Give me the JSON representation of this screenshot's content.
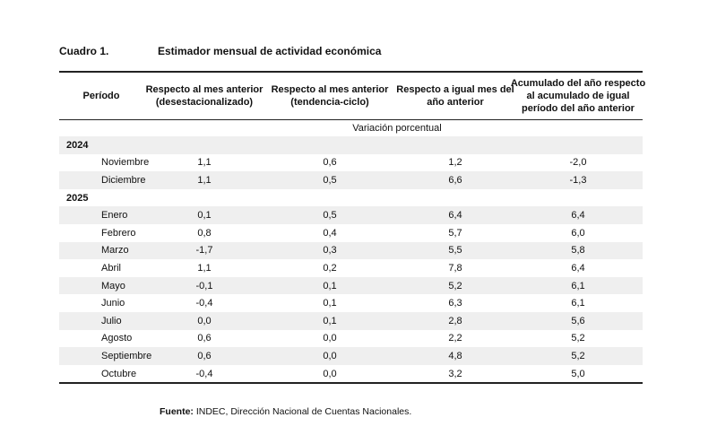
{
  "title": {
    "number": "Cuadro 1.",
    "text": "Estimador mensual de actividad económica"
  },
  "table": {
    "header": [
      [
        "Período"
      ],
      [
        "Respecto al mes anterior",
        "(desestacionalizado)"
      ],
      [
        "Respecto al mes anterior",
        "(tendencia-ciclo)"
      ],
      [
        "Respecto a igual mes del",
        "año anterior"
      ],
      [
        "Acumulado del año respecto",
        "al acumulado de igual",
        "período del año anterior"
      ]
    ],
    "unit": "Variación porcentual",
    "sections": [
      {
        "year": "2024",
        "rows": [
          [
            "Noviembre",
            "1,1",
            "0,6",
            "1,2",
            "-2,0"
          ],
          [
            "Diciembre",
            "1,1",
            "0,5",
            "6,6",
            "-1,3"
          ]
        ]
      },
      {
        "year": "2025",
        "rows": [
          [
            "Enero",
            "0,1",
            "0,5",
            "6,4",
            "6,4"
          ],
          [
            "Febrero",
            "0,8",
            "0,4",
            "5,7",
            "6,0"
          ],
          [
            "Marzo",
            "-1,7",
            "0,3",
            "5,5",
            "5,8"
          ],
          [
            "Abril",
            "1,1",
            "0,2",
            "7,8",
            "6,4"
          ],
          [
            "Mayo",
            "-0,1",
            "0,1",
            "5,2",
            "6,1"
          ],
          [
            "Junio",
            "-0,4",
            "0,1",
            "6,3",
            "6,1"
          ],
          [
            "Julio",
            "0,0",
            "0,1",
            "2,8",
            "5,6"
          ],
          [
            "Agosto",
            "0,6",
            "0,0",
            "2,2",
            "5,2"
          ],
          [
            "Septiembre",
            "0,6",
            "0,0",
            "4,8",
            "5,2"
          ],
          [
            "Octubre",
            "-0,4",
            "0,0",
            "3,2",
            "5,0"
          ]
        ]
      }
    ]
  },
  "source": {
    "label": "Fuente:",
    "text": "INDEC, Dirección Nacional de Cuentas Nacionales."
  }
}
